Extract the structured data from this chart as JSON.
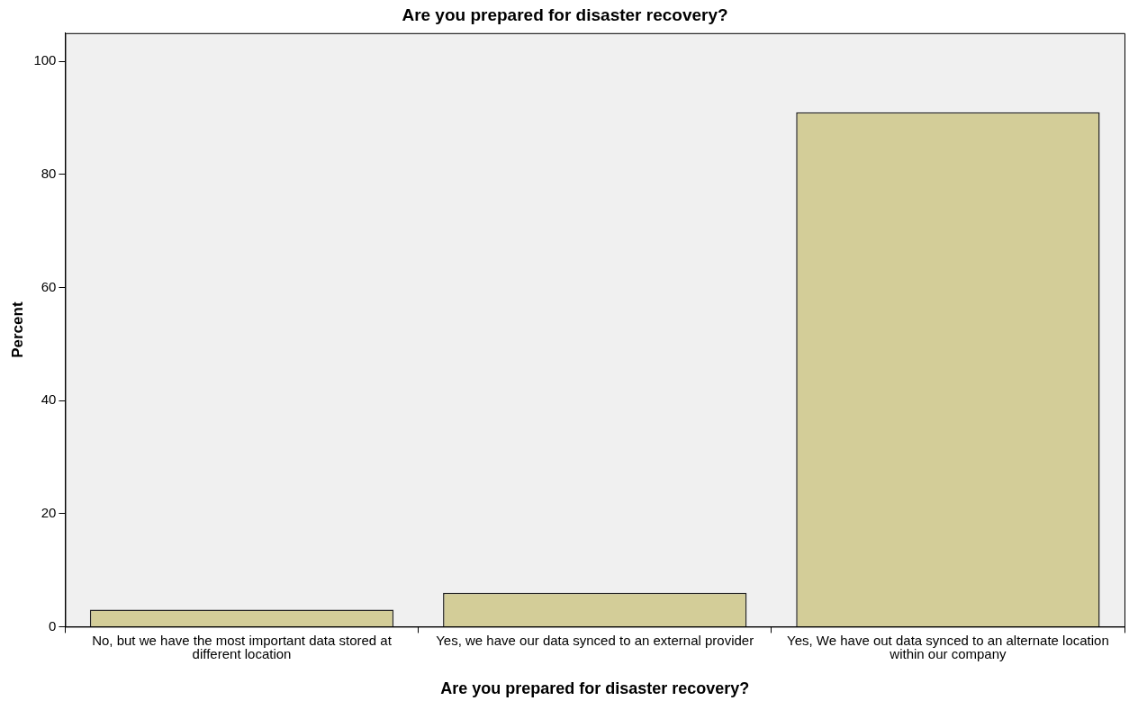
{
  "chart_data": {
    "type": "bar",
    "title": "Are you prepared for disaster recovery?",
    "xlabel": "Are you prepared for disaster recovery?",
    "ylabel": "Percent",
    "categories": [
      "No, but we have the most important data stored at different location",
      "Yes, we have our data synced to an external provider",
      "Yes, We have out data synced to an alternate location within our company"
    ],
    "values": [
      3,
      6,
      91
    ],
    "color": "#d3cd98",
    "ylim": [
      0,
      105
    ],
    "yticks": [
      0,
      20,
      40,
      60,
      80,
      100
    ],
    "legend": false
  }
}
